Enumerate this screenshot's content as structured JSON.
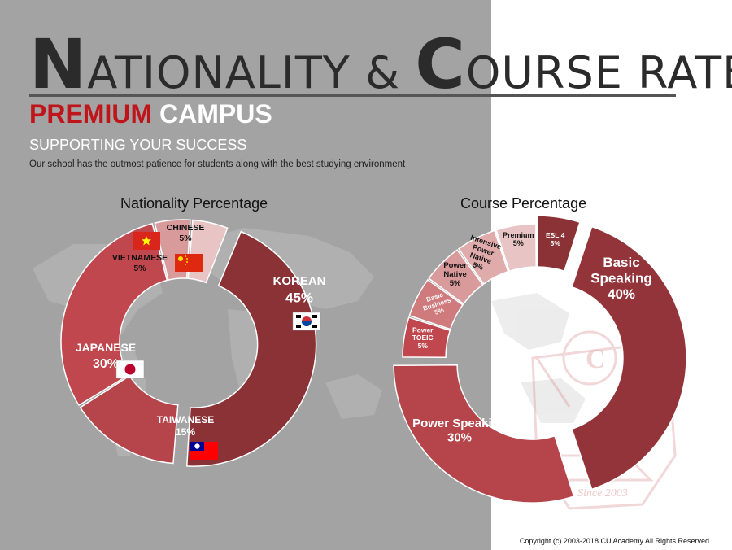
{
  "header": {
    "title_part1_big": "N",
    "title_part1_rest": "ATIONALITY & ",
    "title_part2_big": "C",
    "title_part2_rest": "OURSE RATE",
    "subtitle_accent": "PREMIUM",
    "subtitle_light": " CAMPUS",
    "tagline": "SUPPORTING YOUR SUCCESS",
    "description": "Our school has the outmost patience for students along with the best studying environment"
  },
  "footer": {
    "copyright": "Copyright (c) 2003-2018 CU Academy All Rights Reserved"
  },
  "watermark": {
    "letter": "C",
    "since": "Since 2003"
  },
  "colors": {
    "panel_gray": "#a3a3a3",
    "dark_red": "#8b3236",
    "mid_red": "#c0474d",
    "light_pink": "#e6b8b8",
    "accent_red": "#c0141b"
  },
  "chart_data": [
    {
      "type": "pie",
      "variant": "donut",
      "title": "Nationality Percentage",
      "slices": [
        {
          "label": "KOREAN",
          "value": 45,
          "pct_label": "45%",
          "color": "#8b3236",
          "flag": "south-korea-flag"
        },
        {
          "label": "TAIWANESE",
          "value": 15,
          "pct_label": "15%",
          "color": "#b5454a",
          "flag": "taiwan-flag"
        },
        {
          "label": "JAPANESE",
          "value": 30,
          "pct_label": "30%",
          "color": "#c0474d",
          "flag": "japan-flag"
        },
        {
          "label": "VIETNAMESE",
          "value": 5,
          "pct_label": "5%",
          "color": "#d99a9c",
          "flag": "vietnam-flag"
        },
        {
          "label": "CHINESE",
          "value": 5,
          "pct_label": "5%",
          "color": "#e8c4c4",
          "flag": "china-flag"
        }
      ]
    },
    {
      "type": "pie",
      "variant": "donut",
      "title": "Course Percentage",
      "slices": [
        {
          "label": "ESL 4",
          "value": 5,
          "pct_label": "5%",
          "color": "#8b3236"
        },
        {
          "label": "Basic Speaking",
          "value": 40,
          "pct_label": "40%",
          "color": "#93343a"
        },
        {
          "label": "Power Speaking",
          "value": 30,
          "pct_label": "30%",
          "color": "#b5454a"
        },
        {
          "label": "Power TOEIC",
          "value": 5,
          "pct_label": "5%",
          "color": "#c0474d"
        },
        {
          "label": "Basic Business",
          "value": 5,
          "pct_label": "5%",
          "color": "#cf7a7c"
        },
        {
          "label": "Power Native",
          "value": 5,
          "pct_label": "5%",
          "color": "#d99a9c"
        },
        {
          "label": "Intensive Power Native",
          "value": 5,
          "pct_label": "5%",
          "color": "#e0abab"
        },
        {
          "label": "Premium",
          "value": 5,
          "pct_label": "5%",
          "color": "#e8c4c4"
        }
      ]
    }
  ]
}
